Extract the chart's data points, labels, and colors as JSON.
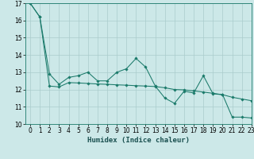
{
  "title": "",
  "xlabel": "Humidex (Indice chaleur)",
  "ylabel": "",
  "background_color": "#cce8e8",
  "grid_color": "#aacccc",
  "line_color": "#1a7a6a",
  "x_values": [
    0,
    1,
    2,
    3,
    4,
    5,
    6,
    7,
    8,
    9,
    10,
    11,
    12,
    13,
    14,
    15,
    16,
    17,
    18,
    19,
    20,
    21,
    22,
    23
  ],
  "line1_y": [
    17.0,
    16.2,
    12.9,
    12.3,
    12.7,
    12.8,
    13.0,
    12.5,
    12.5,
    13.0,
    13.2,
    13.8,
    13.3,
    12.2,
    11.5,
    11.2,
    11.9,
    11.8,
    12.8,
    11.75,
    11.7,
    10.4,
    10.4,
    10.35
  ],
  "line2_y": [
    17.0,
    16.2,
    12.2,
    12.15,
    12.4,
    12.38,
    12.35,
    12.32,
    12.3,
    12.27,
    12.25,
    12.22,
    12.2,
    12.17,
    12.1,
    12.0,
    11.98,
    11.92,
    11.85,
    11.78,
    11.7,
    11.55,
    11.45,
    11.35
  ],
  "ylim": [
    10,
    17
  ],
  "xlim": [
    -0.5,
    23
  ],
  "yticks": [
    10,
    11,
    12,
    13,
    14,
    15,
    16,
    17
  ],
  "xticks": [
    0,
    1,
    2,
    3,
    4,
    5,
    6,
    7,
    8,
    9,
    10,
    11,
    12,
    13,
    14,
    15,
    16,
    17,
    18,
    19,
    20,
    21,
    22,
    23
  ],
  "tick_fontsize": 5.5,
  "xlabel_fontsize": 6.5,
  "marker": "D",
  "marker_size": 1.8,
  "line_width": 0.75
}
